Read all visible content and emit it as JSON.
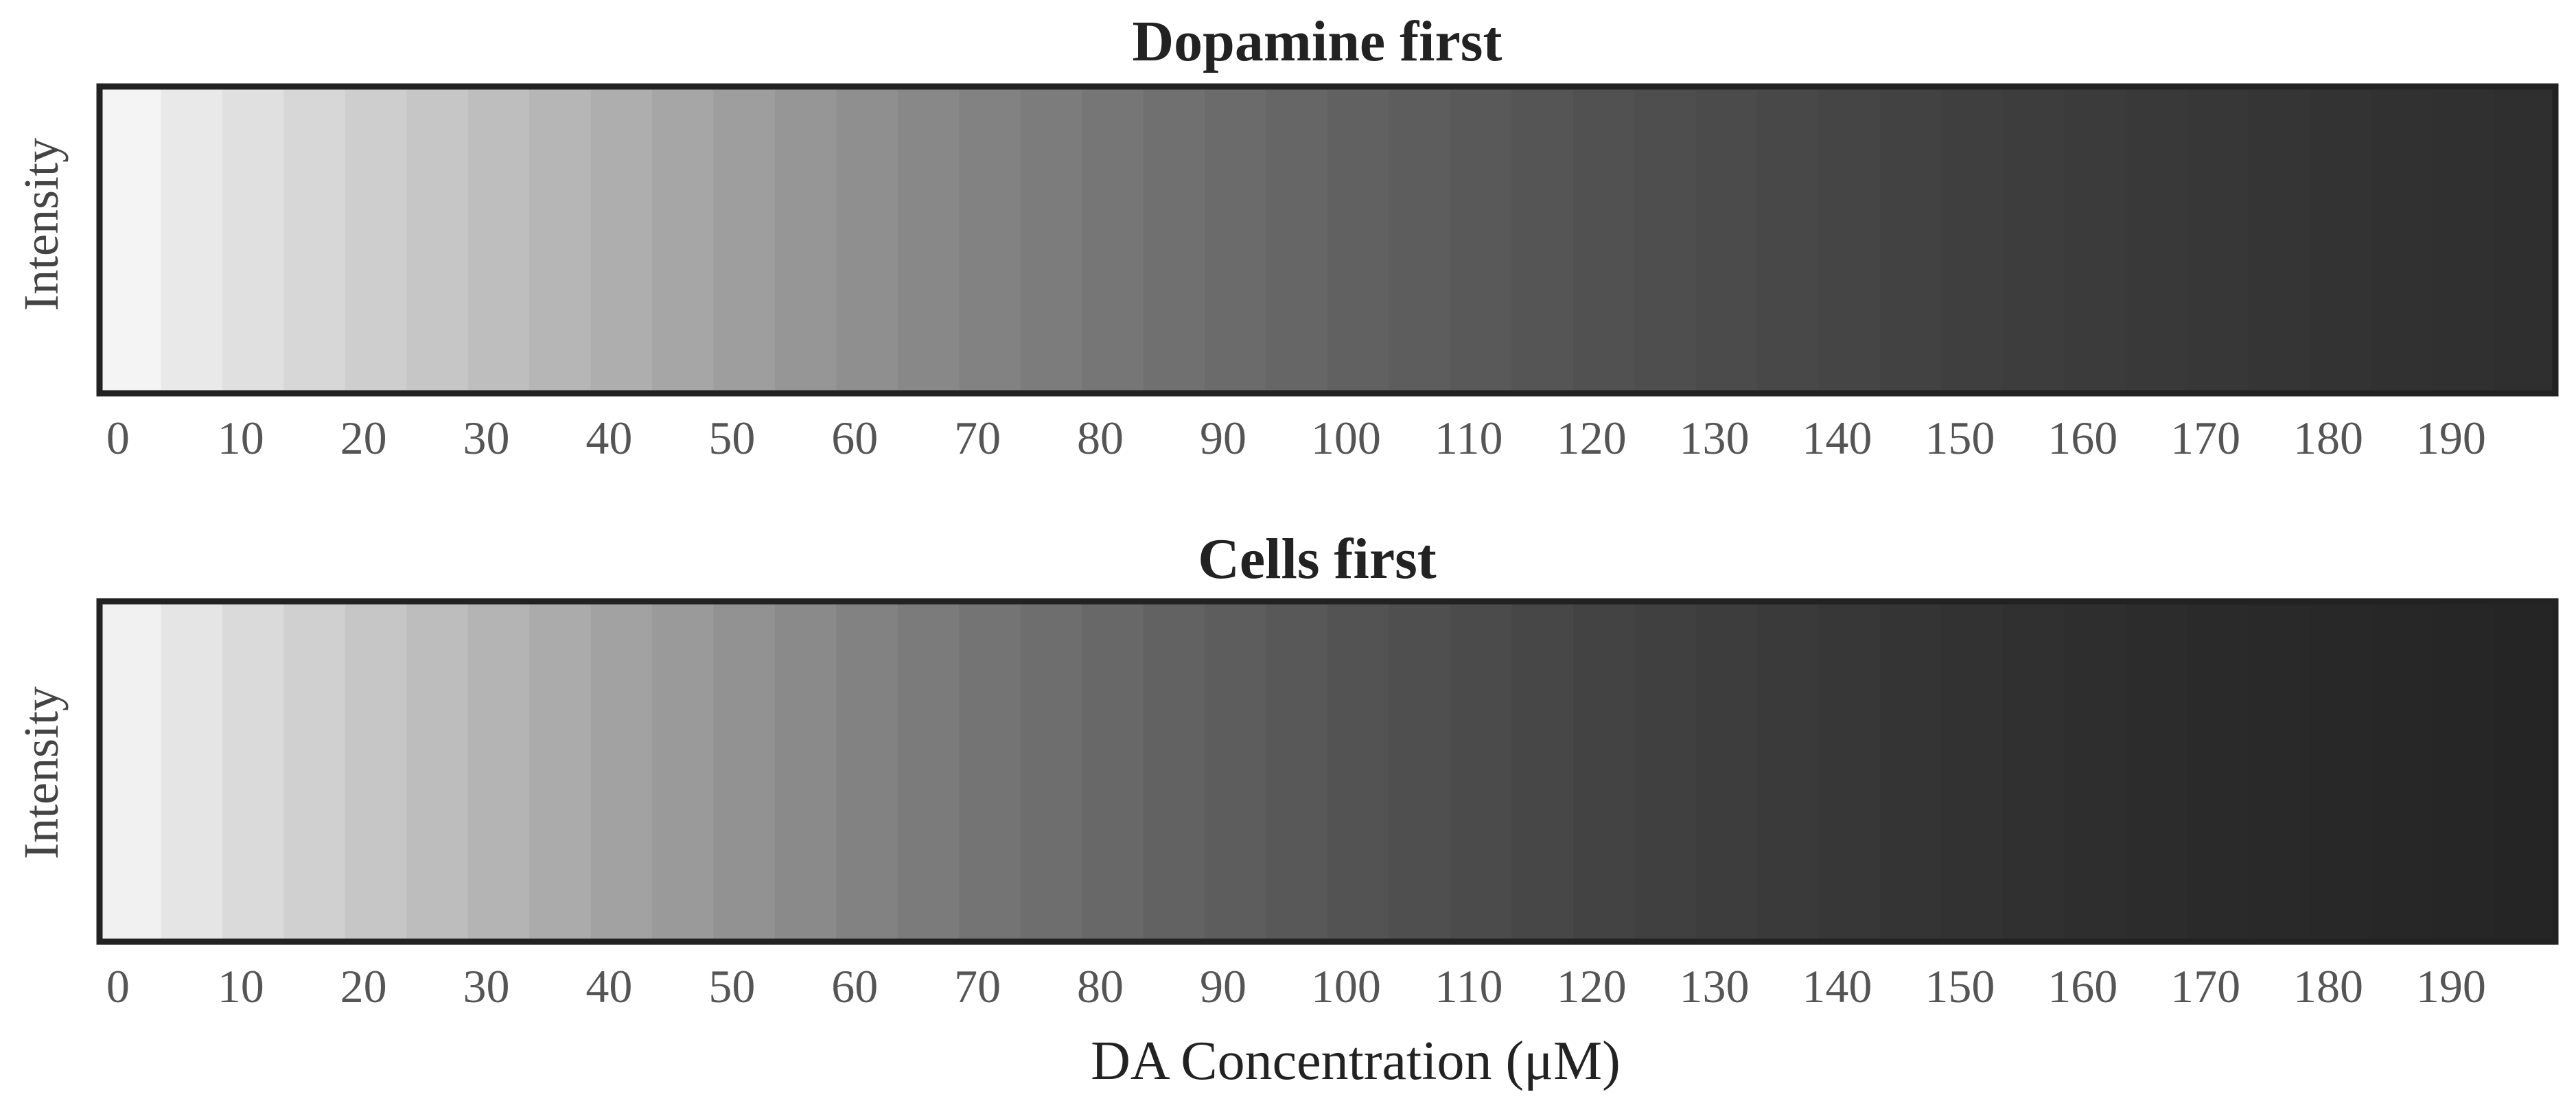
{
  "chart_data": [
    {
      "type": "heatmap",
      "title": "Dopamine first",
      "ylabel": "Intensity",
      "xlabel": "",
      "categories": [
        "0",
        "10",
        "20",
        "30",
        "40",
        "50",
        "60",
        "70",
        "80",
        "90",
        "100",
        "110",
        "120",
        "130",
        "140",
        "150",
        "160",
        "170",
        "180",
        "190"
      ],
      "xlim": [
        0,
        200
      ],
      "bin_width": 5,
      "gray_levels": [
        244,
        233,
        224,
        215,
        206,
        198,
        190,
        182,
        174,
        166,
        158,
        150,
        143,
        136,
        130,
        124,
        118,
        112,
        107,
        102,
        97,
        93,
        89,
        85,
        81,
        78,
        75,
        72,
        69,
        66,
        63,
        61,
        59,
        57,
        55,
        53,
        51,
        49,
        48,
        47
      ]
    },
    {
      "type": "heatmap",
      "title": "Cells first",
      "ylabel": "Intensity",
      "xlabel": "DA Concentration (μM)",
      "categories": [
        "0",
        "10",
        "20",
        "30",
        "40",
        "50",
        "60",
        "70",
        "80",
        "90",
        "100",
        "110",
        "120",
        "130",
        "140",
        "150",
        "160",
        "170",
        "180",
        "190"
      ],
      "xlim": [
        0,
        200
      ],
      "bin_width": 5,
      "gray_levels": [
        241,
        229,
        218,
        208,
        198,
        189,
        180,
        171,
        162,
        154,
        146,
        138,
        130,
        123,
        116,
        110,
        104,
        98,
        93,
        88,
        83,
        79,
        75,
        71,
        67,
        64,
        61,
        58,
        55,
        52,
        50,
        48,
        46,
        44,
        42,
        41,
        40,
        39,
        38,
        37
      ]
    }
  ]
}
